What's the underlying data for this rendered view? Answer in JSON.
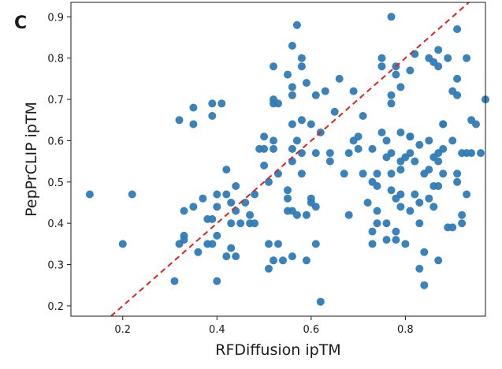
{
  "panel_label": "C",
  "chart_data": {
    "type": "scatter",
    "title": "",
    "xlabel": "RFDiffusion  ipTM",
    "ylabel": "PepPrCLIP  ipTM",
    "xlim": [
      0.09,
      0.97
    ],
    "ylim": [
      0.175,
      0.935
    ],
    "xticks": [
      0.2,
      0.4,
      0.6,
      0.8
    ],
    "xtick_labels": [
      "0.2",
      "0.4",
      "0.6",
      "0.8"
    ],
    "yticks": [
      0.2,
      0.3,
      0.4,
      0.5,
      0.6,
      0.7,
      0.8,
      0.9
    ],
    "ytick_labels": [
      "0.2",
      "0.3",
      "0.4",
      "0.5",
      "0.6",
      "0.7",
      "0.8",
      "0.9"
    ],
    "grid": false,
    "reference_line": {
      "style": "dashed",
      "color": "#e0201b",
      "slope": 1,
      "intercept": 0
    },
    "marker_color": "#2f7bb6",
    "points": [
      [
        0.13,
        0.47
      ],
      [
        0.2,
        0.35
      ],
      [
        0.22,
        0.47
      ],
      [
        0.31,
        0.26
      ],
      [
        0.32,
        0.65
      ],
      [
        0.32,
        0.35
      ],
      [
        0.33,
        0.43
      ],
      [
        0.33,
        0.37
      ],
      [
        0.33,
        0.36
      ],
      [
        0.35,
        0.68
      ],
      [
        0.35,
        0.64
      ],
      [
        0.35,
        0.44
      ],
      [
        0.36,
        0.33
      ],
      [
        0.37,
        0.46
      ],
      [
        0.38,
        0.41
      ],
      [
        0.38,
        0.35
      ],
      [
        0.39,
        0.69
      ],
      [
        0.39,
        0.66
      ],
      [
        0.39,
        0.41
      ],
      [
        0.39,
        0.35
      ],
      [
        0.4,
        0.47
      ],
      [
        0.4,
        0.44
      ],
      [
        0.4,
        0.37
      ],
      [
        0.4,
        0.26
      ],
      [
        0.41,
        0.69
      ],
      [
        0.42,
        0.53
      ],
      [
        0.42,
        0.47
      ],
      [
        0.42,
        0.32
      ],
      [
        0.43,
        0.45
      ],
      [
        0.43,
        0.4
      ],
      [
        0.43,
        0.34
      ],
      [
        0.44,
        0.49
      ],
      [
        0.44,
        0.43
      ],
      [
        0.44,
        0.32
      ],
      [
        0.45,
        0.4
      ],
      [
        0.46,
        0.45
      ],
      [
        0.47,
        0.42
      ],
      [
        0.47,
        0.4
      ],
      [
        0.48,
        0.4
      ],
      [
        0.48,
        0.47
      ],
      [
        0.49,
        0.58
      ],
      [
        0.5,
        0.61
      ],
      [
        0.5,
        0.58
      ],
      [
        0.5,
        0.54
      ],
      [
        0.51,
        0.5
      ],
      [
        0.51,
        0.35
      ],
      [
        0.51,
        0.29
      ],
      [
        0.52,
        0.78
      ],
      [
        0.52,
        0.7
      ],
      [
        0.52,
        0.69
      ],
      [
        0.52,
        0.6
      ],
      [
        0.52,
        0.58
      ],
      [
        0.52,
        0.31
      ],
      [
        0.53,
        0.69
      ],
      [
        0.53,
        0.52
      ],
      [
        0.53,
        0.35
      ],
      [
        0.54,
        0.31
      ],
      [
        0.55,
        0.76
      ],
      [
        0.55,
        0.48
      ],
      [
        0.55,
        0.46
      ],
      [
        0.55,
        0.43
      ],
      [
        0.56,
        0.83
      ],
      [
        0.56,
        0.73
      ],
      [
        0.56,
        0.71
      ],
      [
        0.56,
        0.64
      ],
      [
        0.56,
        0.58
      ],
      [
        0.56,
        0.55
      ],
      [
        0.56,
        0.43
      ],
      [
        0.56,
        0.32
      ],
      [
        0.57,
        0.88
      ],
      [
        0.57,
        0.6
      ],
      [
        0.57,
        0.42
      ],
      [
        0.58,
        0.8
      ],
      [
        0.58,
        0.78
      ],
      [
        0.58,
        0.65
      ],
      [
        0.58,
        0.57
      ],
      [
        0.58,
        0.52
      ],
      [
        0.59,
        0.74
      ],
      [
        0.59,
        0.42
      ],
      [
        0.59,
        0.31
      ],
      [
        0.6,
        0.64
      ],
      [
        0.6,
        0.46
      ],
      [
        0.6,
        0.45
      ],
      [
        0.61,
        0.71
      ],
      [
        0.61,
        0.57
      ],
      [
        0.61,
        0.44
      ],
      [
        0.61,
        0.35
      ],
      [
        0.62,
        0.62
      ],
      [
        0.62,
        0.21
      ],
      [
        0.63,
        0.72
      ],
      [
        0.64,
        0.57
      ],
      [
        0.64,
        0.55
      ],
      [
        0.65,
        0.67
      ],
      [
        0.66,
        0.75
      ],
      [
        0.67,
        0.52
      ],
      [
        0.68,
        0.57
      ],
      [
        0.68,
        0.42
      ],
      [
        0.69,
        0.72
      ],
      [
        0.69,
        0.6
      ],
      [
        0.7,
        0.61
      ],
      [
        0.7,
        0.58
      ],
      [
        0.71,
        0.52
      ],
      [
        0.71,
        0.66
      ],
      [
        0.72,
        0.45
      ],
      [
        0.73,
        0.58
      ],
      [
        0.73,
        0.5
      ],
      [
        0.73,
        0.38
      ],
      [
        0.73,
        0.35
      ],
      [
        0.74,
        0.52
      ],
      [
        0.74,
        0.49
      ],
      [
        0.74,
        0.43
      ],
      [
        0.74,
        0.4
      ],
      [
        0.75,
        0.78
      ],
      [
        0.75,
        0.8
      ],
      [
        0.75,
        0.62
      ],
      [
        0.76,
        0.6
      ],
      [
        0.76,
        0.56
      ],
      [
        0.76,
        0.4
      ],
      [
        0.76,
        0.36
      ],
      [
        0.77,
        0.9
      ],
      [
        0.77,
        0.71
      ],
      [
        0.77,
        0.69
      ],
      [
        0.77,
        0.57
      ],
      [
        0.77,
        0.52
      ],
      [
        0.77,
        0.48
      ],
      [
        0.78,
        0.78
      ],
      [
        0.78,
        0.76
      ],
      [
        0.78,
        0.46
      ],
      [
        0.78,
        0.38
      ],
      [
        0.78,
        0.36
      ],
      [
        0.79,
        0.73
      ],
      [
        0.79,
        0.62
      ],
      [
        0.79,
        0.55
      ],
      [
        0.79,
        0.53
      ],
      [
        0.79,
        0.47
      ],
      [
        0.79,
        0.44
      ],
      [
        0.8,
        0.56
      ],
      [
        0.8,
        0.35
      ],
      [
        0.81,
        0.77
      ],
      [
        0.81,
        0.61
      ],
      [
        0.81,
        0.61
      ],
      [
        0.81,
        0.57
      ],
      [
        0.81,
        0.43
      ],
      [
        0.82,
        0.81
      ],
      [
        0.82,
        0.55
      ],
      [
        0.82,
        0.47
      ],
      [
        0.83,
        0.59
      ],
      [
        0.83,
        0.45
      ],
      [
        0.83,
        0.4
      ],
      [
        0.83,
        0.29
      ],
      [
        0.84,
        0.52
      ],
      [
        0.84,
        0.33
      ],
      [
        0.84,
        0.25
      ],
      [
        0.85,
        0.8
      ],
      [
        0.85,
        0.6
      ],
      [
        0.85,
        0.53
      ],
      [
        0.85,
        0.46
      ],
      [
        0.86,
        0.79
      ],
      [
        0.86,
        0.56
      ],
      [
        0.86,
        0.49
      ],
      [
        0.86,
        0.44
      ],
      [
        0.87,
        0.82
      ],
      [
        0.87,
        0.78
      ],
      [
        0.87,
        0.57
      ],
      [
        0.87,
        0.55
      ],
      [
        0.87,
        0.49
      ],
      [
        0.87,
        0.31
      ],
      [
        0.88,
        0.64
      ],
      [
        0.88,
        0.64
      ],
      [
        0.88,
        0.58
      ],
      [
        0.88,
        0.52
      ],
      [
        0.89,
        0.8
      ],
      [
        0.89,
        0.39
      ],
      [
        0.9,
        0.72
      ],
      [
        0.9,
        0.6
      ],
      [
        0.9,
        0.39
      ],
      [
        0.91,
        0.87
      ],
      [
        0.91,
        0.75
      ],
      [
        0.91,
        0.71
      ],
      [
        0.91,
        0.52
      ],
      [
        0.91,
        0.5
      ],
      [
        0.92,
        0.57
      ],
      [
        0.92,
        0.42
      ],
      [
        0.92,
        0.4
      ],
      [
        0.93,
        0.8
      ],
      [
        0.93,
        0.57
      ],
      [
        0.93,
        0.47
      ],
      [
        0.94,
        0.65
      ],
      [
        0.94,
        0.57
      ],
      [
        0.95,
        0.64
      ],
      [
        0.96,
        0.57
      ],
      [
        0.97,
        0.7
      ]
    ]
  }
}
